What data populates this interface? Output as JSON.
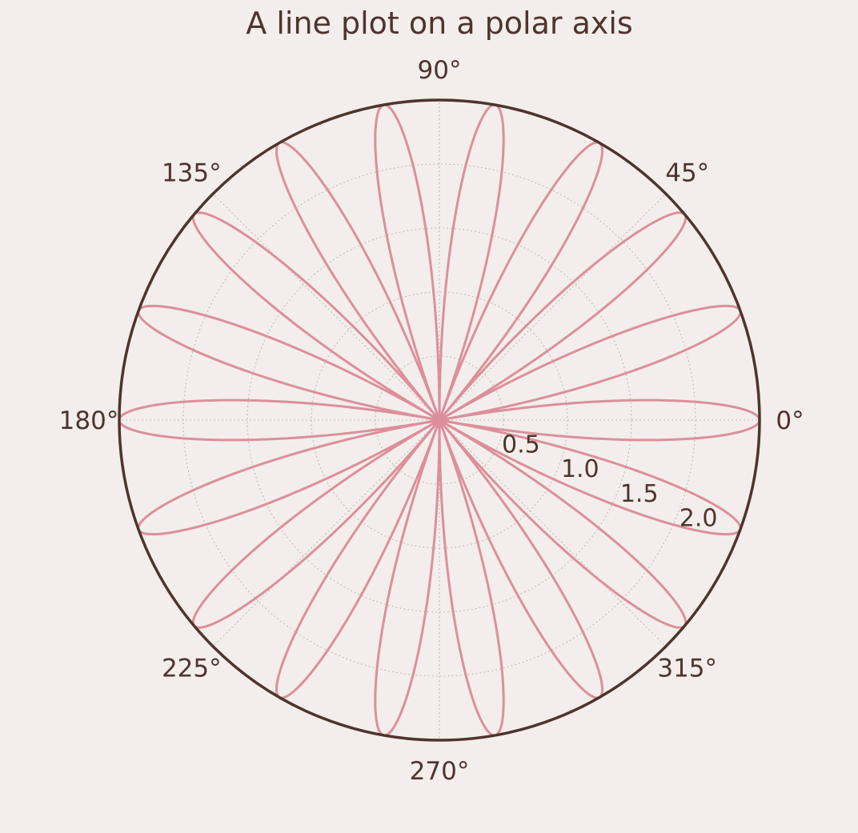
{
  "chart_data": {
    "type": "line",
    "projection": "polar",
    "title": "A line plot on a polar axis",
    "series": [
      {
        "equation": "r = 2.5 * |cos(9 * theta)|",
        "color": "#dc8f9b",
        "rmax": 2.5,
        "petals": 18
      }
    ],
    "theta_ticks": [
      "0°",
      "45°",
      "90°",
      "135°",
      "180°",
      "225°",
      "270°",
      "315°"
    ],
    "theta_tick_values": [
      0,
      45,
      90,
      135,
      180,
      225,
      270,
      315
    ],
    "r_ticks": [
      "0.5",
      "1.0",
      "1.5",
      "2.0"
    ],
    "r_tick_values": [
      0.5,
      1.0,
      1.5,
      2.0
    ],
    "rlim": [
      0,
      2.5
    ],
    "r_label_angle_deg": -22.5,
    "grid": true,
    "colors": {
      "background": "#f3eeeb",
      "frame": "#4e342e",
      "text": "#4e342e",
      "grid": "#bdb6b2",
      "line": "#dc8f9b"
    }
  }
}
